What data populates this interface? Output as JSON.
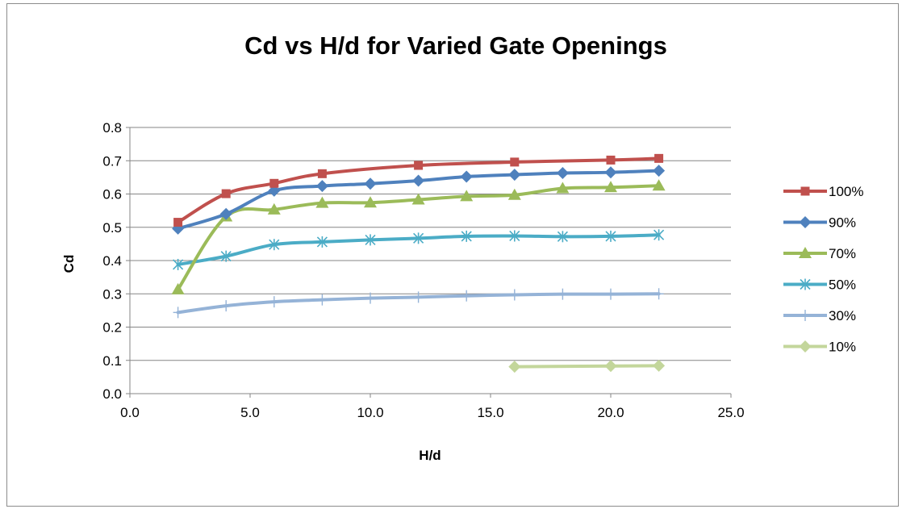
{
  "chart_data": {
    "type": "line",
    "title": "Cd vs H/d for Varied Gate Openings",
    "xlabel": "H/d",
    "ylabel": "Cd",
    "xlim": [
      0,
      25
    ],
    "ylim": [
      0,
      0.8
    ],
    "x_ticks": [
      "0.0",
      "5.0",
      "10.0",
      "15.0",
      "20.0",
      "25.0"
    ],
    "y_ticks": [
      "0.0",
      "0.1",
      "0.2",
      "0.3",
      "0.4",
      "0.5",
      "0.6",
      "0.7",
      "0.8"
    ],
    "grid": "horizontal",
    "legend": "right",
    "series": [
      {
        "name": "100%",
        "color": "#c0504d",
        "marker": "square",
        "x": [
          2,
          4,
          6,
          8,
          12,
          16,
          20,
          22
        ],
        "y": [
          0.515,
          0.601,
          0.632,
          0.661,
          0.686,
          0.696,
          0.702,
          0.707
        ]
      },
      {
        "name": "90%",
        "color": "#4f81bd",
        "marker": "diamond",
        "x": [
          2,
          4,
          6,
          8,
          10,
          12,
          14,
          16,
          18,
          20,
          22
        ],
        "y": [
          0.496,
          0.54,
          0.61,
          0.624,
          0.631,
          0.64,
          0.652,
          0.658,
          0.663,
          0.665,
          0.67
        ]
      },
      {
        "name": "70%",
        "color": "#9bbb59",
        "marker": "triangle",
        "x": [
          2,
          4,
          6,
          8,
          10,
          12,
          14,
          16,
          18,
          20,
          22
        ],
        "y": [
          0.313,
          0.532,
          0.553,
          0.573,
          0.574,
          0.583,
          0.593,
          0.597,
          0.617,
          0.62,
          0.625
        ]
      },
      {
        "name": "50%",
        "color": "#4bacc6",
        "marker": "star",
        "x": [
          2,
          4,
          6,
          8,
          10,
          12,
          14,
          16,
          18,
          20,
          22
        ],
        "y": [
          0.388,
          0.413,
          0.448,
          0.456,
          0.462,
          0.467,
          0.473,
          0.474,
          0.472,
          0.473,
          0.477
        ]
      },
      {
        "name": "30%",
        "color": "#95b3d7",
        "marker": "plus",
        "x": [
          2,
          4,
          6,
          8,
          10,
          12,
          14,
          16,
          18,
          20,
          22
        ],
        "y": [
          0.244,
          0.264,
          0.276,
          0.282,
          0.287,
          0.29,
          0.294,
          0.297,
          0.299,
          0.299,
          0.3
        ]
      },
      {
        "name": "10%",
        "color": "#c3d69b",
        "marker": "diamond",
        "x": [
          16,
          20,
          22
        ],
        "y": [
          0.081,
          0.083,
          0.084
        ]
      }
    ]
  }
}
